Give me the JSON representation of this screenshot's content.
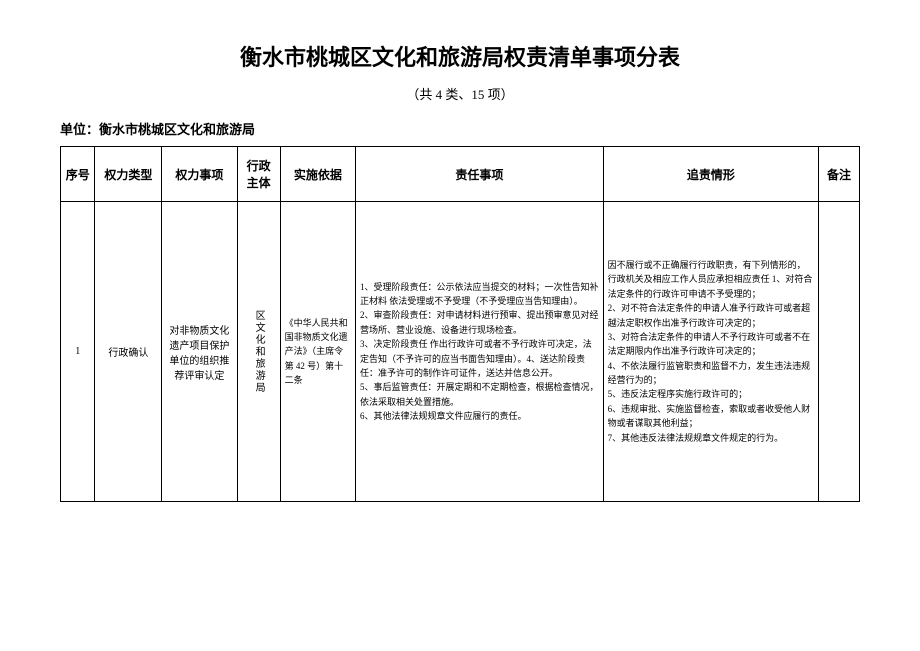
{
  "title": "衡水市桃城区文化和旅游局权责清单事项分表",
  "subtitle": "（共 4 类、15 项）",
  "unit_label": "单位：衡水市桃城区文化和旅游局",
  "headers": {
    "seq": "序号",
    "type": "权力类型",
    "item": "权力事项",
    "subject": "行政主体",
    "basis": "实施依据",
    "duty": "责任事项",
    "accountability": "追责情形",
    "remark": "备注"
  },
  "rows": [
    {
      "seq": "1",
      "type": "行政确认",
      "item": "对非物质文化遗产项目保护单位的组织推荐评审认定",
      "subject": "区文化和旅游局",
      "basis": "《中华人民共和国非物质文化遗产法》（主席令第 42 号）第十二条",
      "duty": "1、受理阶段责任：公示依法应当提交的材料；一次性告知补正材料 依法受理或不予受理（不予受理应当告知理由）。\n2、审查阶段责任：对申请材料进行预审、提出预审意见对经营场所、营业设施、设备进行现场检查。\n3、决定阶段责任 作出行政许可或者不予行政许可决定，法定告知（不予许可的应当书面告知理由）。4、送达阶段责任：准予许可的制作许可证件，送达并信息公开。\n5、事后监管责任：开展定期和不定期检查，根据检查情况，依法采取相关处置措施。\n6、其他法律法规规章文件应履行的责任。",
      "accountability": "因不履行或不正确履行行政职责，有下列情形的，行政机关及相应工作人员应承担相应责任 1、对符合法定条件的行政许可申请不予受理的；\n2、对不符合法定条件的申请人准予行政许可或者超越法定职权作出准予行政许可决定的；\n3、对符合法定条件的申请人不予行政许可或者不在法定期限内作出准予行政许可决定的；\n4、不依法履行监管职责和监督不力，发生违法违规经营行为的；\n5、违反法定程序实施行政许可的；\n6、违规审批、实施监督检查，索取或者收受他人财物或者谋取其他利益；\n7、其他违反法律法规规章文件规定的行为。",
      "remark": ""
    }
  ],
  "colors": {
    "text": "#000000",
    "border": "#000000",
    "background": "#ffffff"
  },
  "fonts": {
    "title_size": 22,
    "subtitle_size": 13,
    "header_size": 12,
    "body_size": 9
  }
}
